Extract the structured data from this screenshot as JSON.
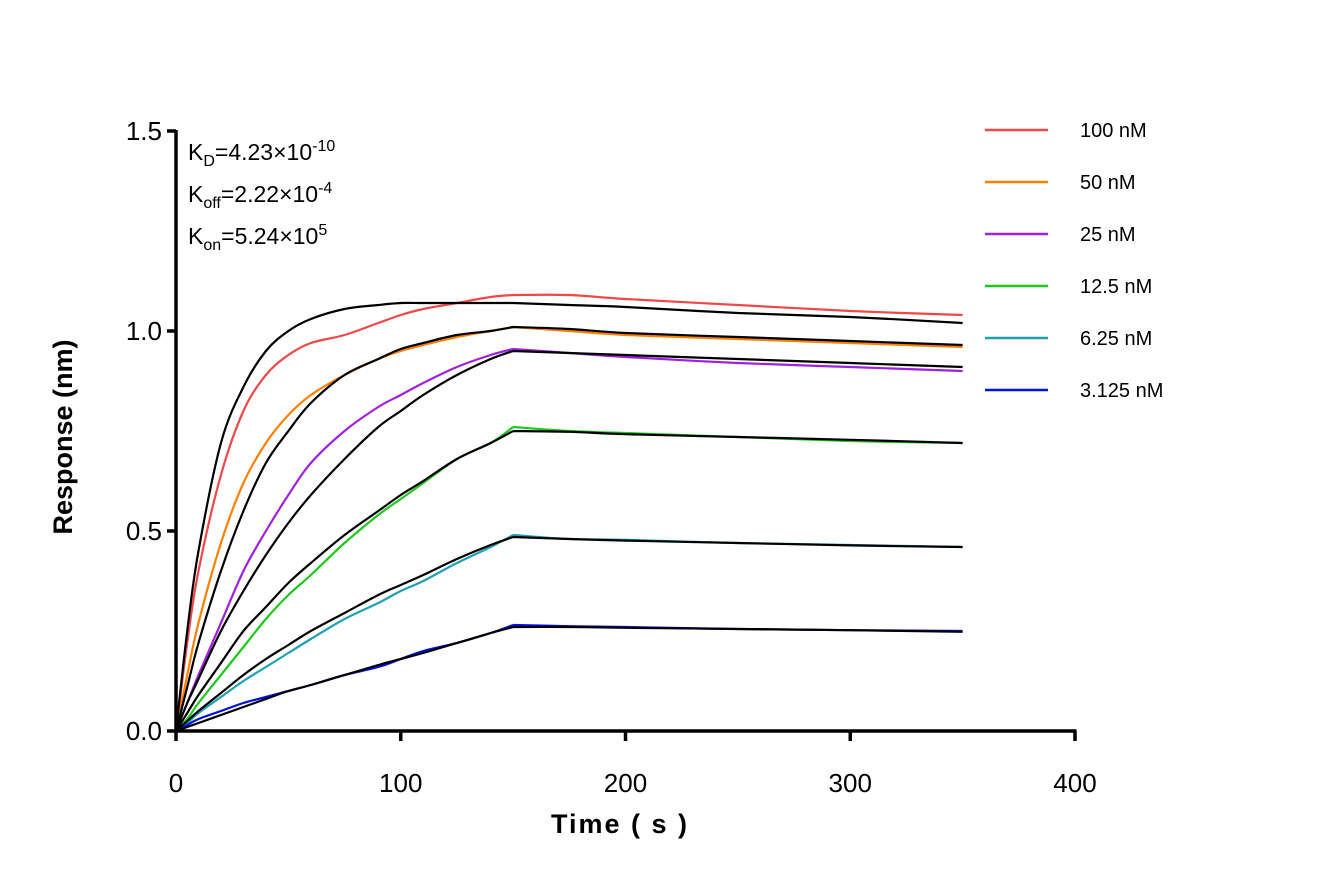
{
  "chart_data": {
    "type": "line",
    "xlabel": "Time ( s )",
    "ylabel": "Response (nm)",
    "xlim": [
      0,
      400
    ],
    "ylim": [
      0,
      1.5
    ],
    "xticks": [
      "0",
      "100",
      "200",
      "300",
      "400"
    ],
    "yticks": [
      "0.0",
      "0.5",
      "1.0",
      "1.5"
    ],
    "grid": false,
    "legend_position": "top-right",
    "annotations": {
      "kd": {
        "base": "K",
        "sub": "D",
        "value": "=4.23×10",
        "exp": "-10"
      },
      "koff": {
        "base": "K",
        "sub": "off",
        "value": "=2.22×10",
        "exp": "-4"
      },
      "kon": {
        "base": "K",
        "sub": "on",
        "value": "=5.24×10",
        "exp": "5"
      }
    },
    "x": [
      0,
      5,
      10,
      20,
      30,
      40,
      50,
      60,
      75,
      90,
      100,
      110,
      125,
      140,
      150,
      175,
      200,
      250,
      300,
      350
    ],
    "fit_color": "#000000",
    "series": [
      {
        "name": "100 nM",
        "color": "#f04848",
        "values": [
          0,
          0.22,
          0.4,
          0.64,
          0.8,
          0.89,
          0.94,
          0.97,
          0.99,
          1.02,
          1.04,
          1.055,
          1.07,
          1.085,
          1.09,
          1.09,
          1.08,
          1.065,
          1.05,
          1.04
        ],
        "fit": [
          0,
          0.25,
          0.45,
          0.72,
          0.86,
          0.95,
          1.0,
          1.03,
          1.055,
          1.065,
          1.07,
          1.07,
          1.07,
          1.07,
          1.07,
          1.065,
          1.06,
          1.045,
          1.035,
          1.02
        ]
      },
      {
        "name": "50 nM",
        "color": "#ff8000",
        "values": [
          0,
          0.14,
          0.27,
          0.47,
          0.62,
          0.72,
          0.79,
          0.84,
          0.89,
          0.93,
          0.95,
          0.965,
          0.985,
          1.0,
          1.01,
          1.0,
          0.99,
          0.98,
          0.97,
          0.96
        ],
        "fit": [
          0,
          0.11,
          0.22,
          0.4,
          0.55,
          0.67,
          0.75,
          0.82,
          0.89,
          0.93,
          0.955,
          0.97,
          0.99,
          1.0,
          1.01,
          1.005,
          0.995,
          0.985,
          0.975,
          0.965
        ]
      },
      {
        "name": "25 nM",
        "color": "#a020e0",
        "values": [
          0,
          0.07,
          0.14,
          0.27,
          0.4,
          0.5,
          0.59,
          0.67,
          0.75,
          0.81,
          0.84,
          0.87,
          0.91,
          0.94,
          0.955,
          0.945,
          0.935,
          0.92,
          0.91,
          0.9
        ],
        "fit": [
          0,
          0.07,
          0.13,
          0.25,
          0.35,
          0.44,
          0.52,
          0.59,
          0.68,
          0.76,
          0.8,
          0.84,
          0.89,
          0.93,
          0.95,
          0.945,
          0.94,
          0.93,
          0.92,
          0.91
        ]
      },
      {
        "name": "12.5 nM",
        "color": "#1ec81e",
        "values": [
          0,
          0.03,
          0.07,
          0.14,
          0.21,
          0.28,
          0.34,
          0.39,
          0.47,
          0.54,
          0.58,
          0.62,
          0.68,
          0.72,
          0.76,
          0.75,
          0.745,
          0.735,
          0.725,
          0.72
        ],
        "fit": [
          0,
          0.045,
          0.09,
          0.17,
          0.25,
          0.31,
          0.37,
          0.42,
          0.49,
          0.55,
          0.59,
          0.625,
          0.68,
          0.72,
          0.75,
          0.748,
          0.742,
          0.735,
          0.728,
          0.72
        ]
      },
      {
        "name": "6.25 nM",
        "color": "#20a0b0",
        "values": [
          0,
          0.02,
          0.045,
          0.085,
          0.125,
          0.16,
          0.195,
          0.23,
          0.28,
          0.32,
          0.35,
          0.375,
          0.42,
          0.46,
          0.49,
          0.48,
          0.478,
          0.47,
          0.465,
          0.46
        ],
        "fit": [
          0,
          0.025,
          0.05,
          0.095,
          0.14,
          0.18,
          0.215,
          0.25,
          0.295,
          0.34,
          0.365,
          0.39,
          0.43,
          0.465,
          0.485,
          0.48,
          0.476,
          0.47,
          0.464,
          0.46
        ]
      },
      {
        "name": "3.125 nM",
        "color": "#0010e0",
        "values": [
          0,
          0.015,
          0.03,
          0.05,
          0.07,
          0.085,
          0.1,
          0.115,
          0.14,
          0.16,
          0.18,
          0.2,
          0.22,
          0.245,
          0.265,
          0.262,
          0.26,
          0.255,
          0.252,
          0.25
        ],
        "fit": [
          0,
          0.01,
          0.02,
          0.04,
          0.06,
          0.08,
          0.1,
          0.115,
          0.14,
          0.165,
          0.18,
          0.195,
          0.22,
          0.245,
          0.26,
          0.26,
          0.258,
          0.255,
          0.252,
          0.248
        ]
      }
    ]
  }
}
